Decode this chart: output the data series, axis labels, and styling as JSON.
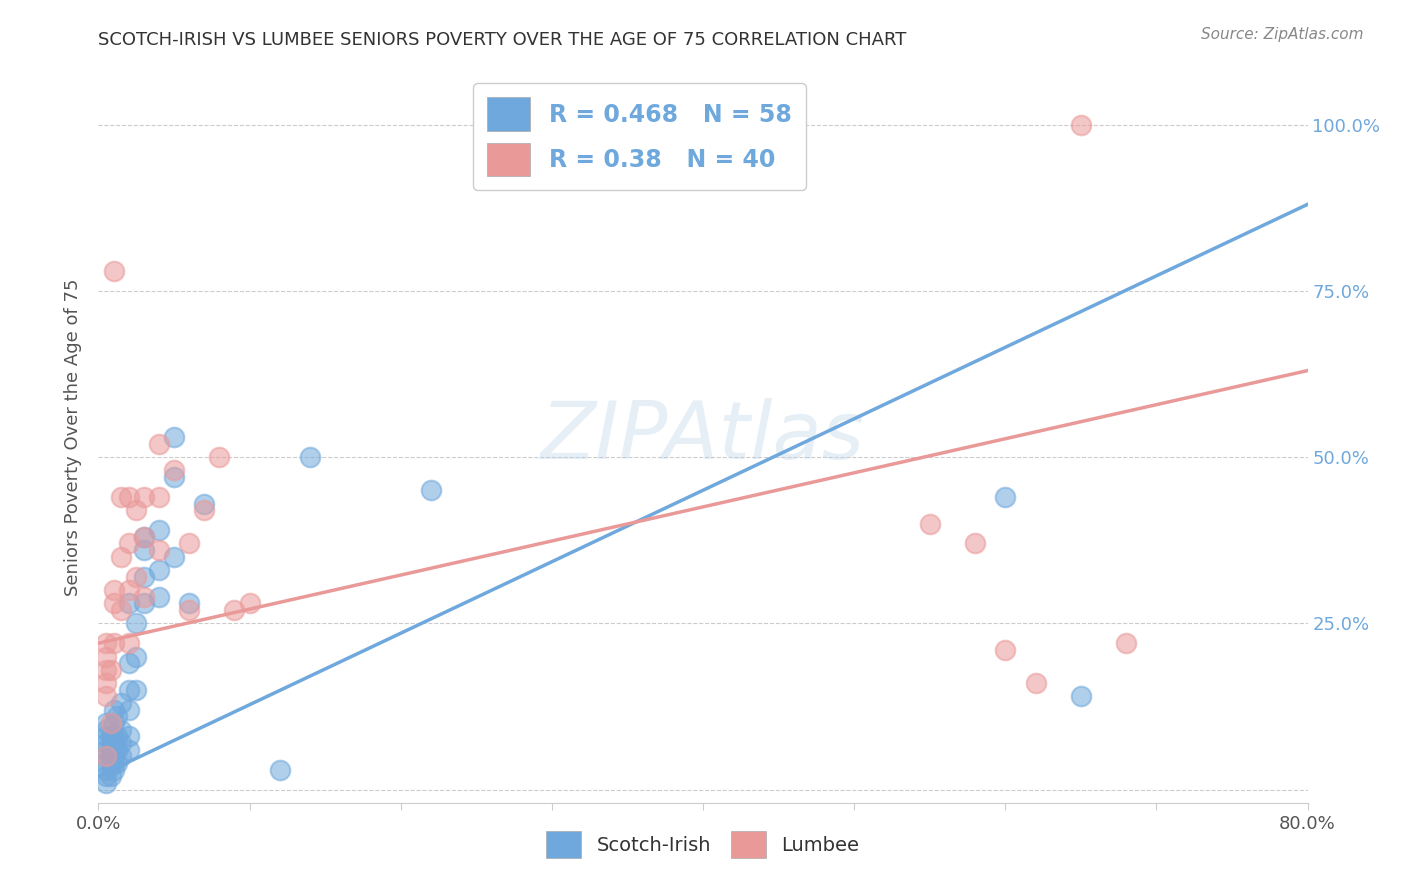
{
  "title": "SCOTCH-IRISH VS LUMBEE SENIORS POVERTY OVER THE AGE OF 75 CORRELATION CHART",
  "source": "Source: ZipAtlas.com",
  "ylabel": "Seniors Poverty Over the Age of 75",
  "xlim": [
    0.0,
    0.8
  ],
  "ylim": [
    -0.02,
    1.08
  ],
  "yticks": [
    0.0,
    0.25,
    0.5,
    0.75,
    1.0
  ],
  "ytick_labels": [
    "",
    "25.0%",
    "50.0%",
    "75.0%",
    "100.0%"
  ],
  "xticks": [
    0.0,
    0.1,
    0.2,
    0.3,
    0.4,
    0.5,
    0.6,
    0.7,
    0.8
  ],
  "xtick_labels": [
    "0.0%",
    "",
    "",
    "",
    "",
    "",
    "",
    "",
    "80.0%"
  ],
  "scotch_irish_color": "#6fa8dc",
  "lumbee_color": "#ea9999",
  "scotch_irish_R": 0.468,
  "scotch_irish_N": 58,
  "lumbee_R": 0.38,
  "lumbee_N": 40,
  "background_color": "#ffffff",
  "grid_color": "#cccccc",
  "watermark": "ZIPAtlas",
  "blue_line_x0": 0.0,
  "blue_line_y0": 0.02,
  "blue_line_x1": 0.8,
  "blue_line_y1": 0.88,
  "pink_line_x0": 0.0,
  "pink_line_y0": 0.22,
  "pink_line_x1": 0.8,
  "pink_line_y1": 0.63,
  "scotch_irish_scatter": [
    [
      0.005,
      0.01
    ],
    [
      0.005,
      0.02
    ],
    [
      0.005,
      0.03
    ],
    [
      0.005,
      0.04
    ],
    [
      0.005,
      0.05
    ],
    [
      0.005,
      0.06
    ],
    [
      0.005,
      0.07
    ],
    [
      0.005,
      0.08
    ],
    [
      0.005,
      0.09
    ],
    [
      0.005,
      0.1
    ],
    [
      0.008,
      0.02
    ],
    [
      0.008,
      0.04
    ],
    [
      0.008,
      0.05
    ],
    [
      0.008,
      0.06
    ],
    [
      0.008,
      0.07
    ],
    [
      0.008,
      0.08
    ],
    [
      0.01,
      0.03
    ],
    [
      0.01,
      0.04
    ],
    [
      0.01,
      0.05
    ],
    [
      0.01,
      0.06
    ],
    [
      0.01,
      0.07
    ],
    [
      0.01,
      0.08
    ],
    [
      0.01,
      0.1
    ],
    [
      0.01,
      0.12
    ],
    [
      0.012,
      0.04
    ],
    [
      0.012,
      0.06
    ],
    [
      0.012,
      0.08
    ],
    [
      0.012,
      0.11
    ],
    [
      0.015,
      0.05
    ],
    [
      0.015,
      0.07
    ],
    [
      0.015,
      0.09
    ],
    [
      0.015,
      0.13
    ],
    [
      0.02,
      0.06
    ],
    [
      0.02,
      0.08
    ],
    [
      0.02,
      0.12
    ],
    [
      0.02,
      0.15
    ],
    [
      0.02,
      0.19
    ],
    [
      0.02,
      0.28
    ],
    [
      0.025,
      0.15
    ],
    [
      0.025,
      0.2
    ],
    [
      0.025,
      0.25
    ],
    [
      0.03,
      0.28
    ],
    [
      0.03,
      0.32
    ],
    [
      0.03,
      0.36
    ],
    [
      0.03,
      0.38
    ],
    [
      0.04,
      0.29
    ],
    [
      0.04,
      0.33
    ],
    [
      0.04,
      0.39
    ],
    [
      0.05,
      0.35
    ],
    [
      0.05,
      0.47
    ],
    [
      0.05,
      0.53
    ],
    [
      0.06,
      0.28
    ],
    [
      0.07,
      0.43
    ],
    [
      0.12,
      0.03
    ],
    [
      0.14,
      0.5
    ],
    [
      0.22,
      0.45
    ],
    [
      0.6,
      0.44
    ],
    [
      0.65,
      0.14
    ]
  ],
  "lumbee_scatter": [
    [
      0.005,
      0.14
    ],
    [
      0.005,
      0.16
    ],
    [
      0.005,
      0.18
    ],
    [
      0.005,
      0.2
    ],
    [
      0.005,
      0.22
    ],
    [
      0.005,
      0.05
    ],
    [
      0.008,
      0.1
    ],
    [
      0.008,
      0.18
    ],
    [
      0.01,
      0.22
    ],
    [
      0.01,
      0.28
    ],
    [
      0.01,
      0.3
    ],
    [
      0.01,
      0.78
    ],
    [
      0.015,
      0.27
    ],
    [
      0.015,
      0.35
    ],
    [
      0.015,
      0.44
    ],
    [
      0.02,
      0.22
    ],
    [
      0.02,
      0.3
    ],
    [
      0.02,
      0.37
    ],
    [
      0.02,
      0.44
    ],
    [
      0.025,
      0.32
    ],
    [
      0.025,
      0.42
    ],
    [
      0.03,
      0.29
    ],
    [
      0.03,
      0.38
    ],
    [
      0.03,
      0.44
    ],
    [
      0.04,
      0.36
    ],
    [
      0.04,
      0.44
    ],
    [
      0.04,
      0.52
    ],
    [
      0.05,
      0.48
    ],
    [
      0.06,
      0.27
    ],
    [
      0.06,
      0.37
    ],
    [
      0.07,
      0.42
    ],
    [
      0.08,
      0.5
    ],
    [
      0.09,
      0.27
    ],
    [
      0.1,
      0.28
    ],
    [
      0.55,
      0.4
    ],
    [
      0.58,
      0.37
    ],
    [
      0.6,
      0.21
    ],
    [
      0.62,
      0.16
    ],
    [
      0.65,
      1.0
    ],
    [
      0.68,
      0.22
    ]
  ]
}
